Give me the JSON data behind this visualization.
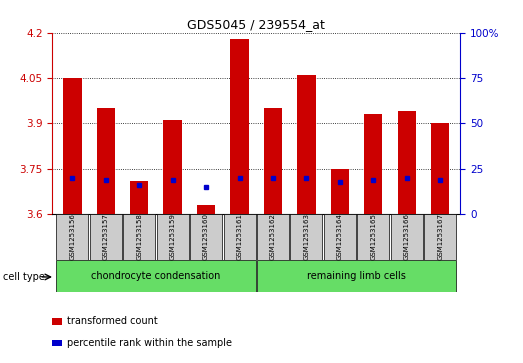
{
  "title": "GDS5045 / 239554_at",
  "samples": [
    "GSM1253156",
    "GSM1253157",
    "GSM1253158",
    "GSM1253159",
    "GSM1253160",
    "GSM1253161",
    "GSM1253162",
    "GSM1253163",
    "GSM1253164",
    "GSM1253165",
    "GSM1253166",
    "GSM1253167"
  ],
  "red_values": [
    4.05,
    3.95,
    3.71,
    3.91,
    3.63,
    4.18,
    3.95,
    4.06,
    3.75,
    3.93,
    3.94,
    3.9
  ],
  "blue_values": [
    20,
    19,
    16,
    19,
    15,
    20,
    20,
    20,
    18,
    19,
    20,
    19
  ],
  "y_min": 3.6,
  "y_max": 4.2,
  "y_ticks_left": [
    3.6,
    3.75,
    3.9,
    4.05,
    4.2
  ],
  "y_ticks_right": [
    0,
    25,
    50,
    75,
    100
  ],
  "bar_color": "#cc0000",
  "marker_color": "#0000cc",
  "bar_width": 0.55,
  "cell_types": [
    {
      "label": "chondrocyte condensation",
      "count": 6,
      "color": "#66dd66"
    },
    {
      "label": "remaining limb cells",
      "count": 6,
      "color": "#66dd66"
    }
  ],
  "cell_type_label": "cell type",
  "legend_red": "transformed count",
  "legend_blue": "percentile rank within the sample",
  "sample_box_color": "#cccccc",
  "left_axis_color": "#cc0000",
  "right_axis_color": "#0000cc"
}
